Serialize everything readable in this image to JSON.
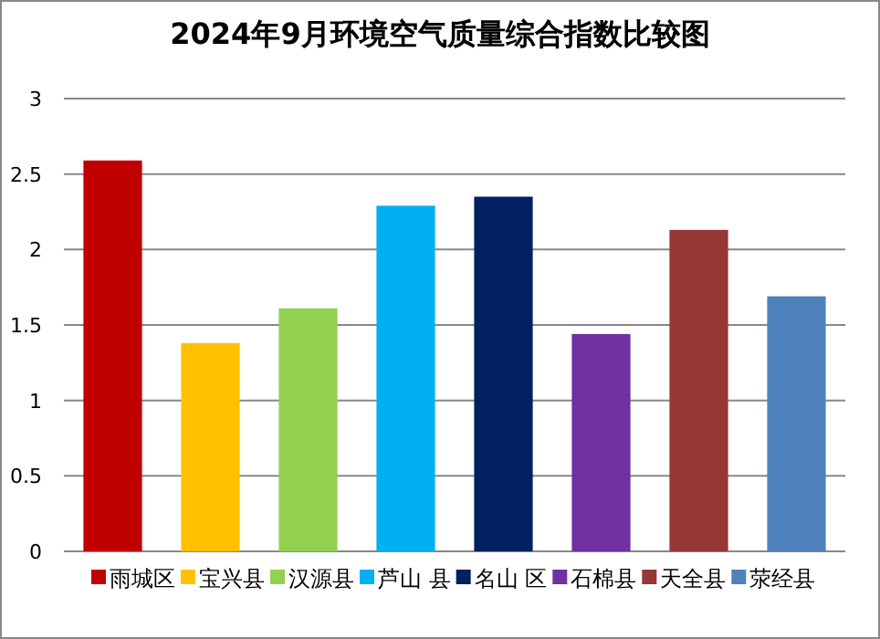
{
  "chart_data": {
    "type": "bar",
    "title": "2024年9月环境空气质量综合指数比较图",
    "categories": [
      null,
      null,
      null,
      null,
      null,
      null,
      null,
      null
    ],
    "series": [
      {
        "name": "雨城区",
        "color": "#c00000",
        "values": [
          2.59,
          null,
          null,
          null,
          null,
          null,
          null,
          null
        ]
      },
      {
        "name": "宝兴县",
        "color": "#ffc000",
        "values": [
          null,
          1.38,
          null,
          null,
          null,
          null,
          null,
          null
        ]
      },
      {
        "name": "汉源县",
        "color": "#92d050",
        "values": [
          null,
          null,
          1.61,
          null,
          null,
          null,
          null,
          null
        ]
      },
      {
        "name": "芦山 县",
        "color": "#00b0f0",
        "values": [
          null,
          null,
          null,
          2.29,
          null,
          null,
          null,
          null
        ]
      },
      {
        "name": "名山 区",
        "color": "#002060",
        "values": [
          null,
          null,
          null,
          null,
          2.35,
          null,
          null,
          null
        ]
      },
      {
        "name": "石棉县",
        "color": "#7030a0",
        "values": [
          null,
          null,
          null,
          null,
          null,
          1.44,
          null,
          null
        ]
      },
      {
        "name": "天全县",
        "color": "#953735",
        "values": [
          null,
          null,
          null,
          null,
          null,
          null,
          2.13,
          null
        ]
      },
      {
        "name": "荥经县",
        "color": "#4f81bd",
        "values": [
          null,
          null,
          null,
          null,
          null,
          null,
          null,
          1.69
        ]
      }
    ],
    "ylim": [
      0,
      3
    ],
    "yticks": [
      0,
      0.5,
      1,
      1.5,
      2,
      2.5,
      3
    ],
    "grid": "y",
    "legend": "bottom"
  }
}
